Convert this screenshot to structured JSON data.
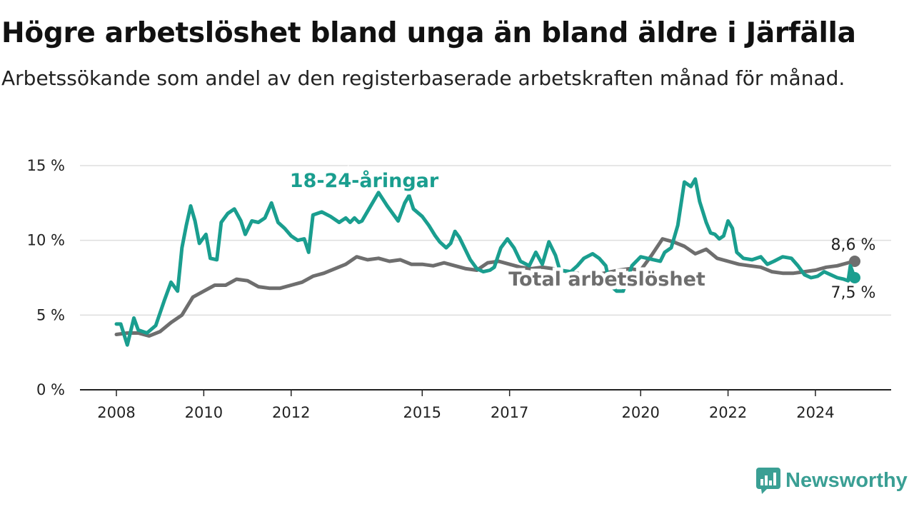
{
  "header": {
    "title": "Högre arbetslöshet bland unga än bland äldre i Järfälla",
    "subtitle": "Arbetssökande som andel av den registerbaserade arbetskraften månad för månad."
  },
  "logo": {
    "text": "Newsworthy",
    "icon": "newsworthy-chart-icon",
    "color": "#3a9f94"
  },
  "chart_data": {
    "type": "line",
    "title": "Högre arbetslöshet bland unga än bland äldre i Järfälla",
    "subtitle": "Arbetssökande som andel av den registerbaserade arbetskraften månad för månad.",
    "xlabel": "",
    "ylabel": "",
    "x_ticks": [
      {
        "value": 2008,
        "label": "2008"
      },
      {
        "value": 2010,
        "label": "2010"
      },
      {
        "value": 2012,
        "label": "2012"
      },
      {
        "value": 2015,
        "label": "2015"
      },
      {
        "value": 2017,
        "label": "2017"
      },
      {
        "value": 2020,
        "label": "2020"
      },
      {
        "value": 2022,
        "label": "2022"
      },
      {
        "value": 2024,
        "label": "2024"
      }
    ],
    "y_ticks": [
      {
        "value": 0,
        "label": "0 %"
      },
      {
        "value": 5,
        "label": "5 %"
      },
      {
        "value": 10,
        "label": "10 %"
      },
      {
        "value": 15,
        "label": "15 %"
      }
    ],
    "xlim": [
      2008,
      2024.9
    ],
    "ylim": [
      0,
      15
    ],
    "grid": true,
    "series": [
      {
        "name": "Total arbetslöshet",
        "color": "#6e6e6e",
        "end_label": "8,6 %",
        "points": [
          [
            2008.0,
            3.7
          ],
          [
            2008.25,
            3.8
          ],
          [
            2008.5,
            3.8
          ],
          [
            2008.75,
            3.6
          ],
          [
            2009.0,
            3.9
          ],
          [
            2009.25,
            4.5
          ],
          [
            2009.5,
            5.0
          ],
          [
            2009.75,
            6.2
          ],
          [
            2010.0,
            6.6
          ],
          [
            2010.25,
            7.0
          ],
          [
            2010.5,
            7.0
          ],
          [
            2010.75,
            7.4
          ],
          [
            2011.0,
            7.3
          ],
          [
            2011.25,
            6.9
          ],
          [
            2011.5,
            6.8
          ],
          [
            2011.75,
            6.8
          ],
          [
            2012.0,
            7.0
          ],
          [
            2012.25,
            7.2
          ],
          [
            2012.5,
            7.6
          ],
          [
            2012.75,
            7.8
          ],
          [
            2013.0,
            8.1
          ],
          [
            2013.25,
            8.4
          ],
          [
            2013.5,
            8.9
          ],
          [
            2013.75,
            8.7
          ],
          [
            2014.0,
            8.8
          ],
          [
            2014.25,
            8.6
          ],
          [
            2014.5,
            8.7
          ],
          [
            2014.75,
            8.4
          ],
          [
            2015.0,
            8.4
          ],
          [
            2015.25,
            8.3
          ],
          [
            2015.5,
            8.5
          ],
          [
            2015.75,
            8.3
          ],
          [
            2016.0,
            8.1
          ],
          [
            2016.25,
            8.0
          ],
          [
            2016.5,
            8.5
          ],
          [
            2016.75,
            8.6
          ],
          [
            2017.0,
            8.4
          ],
          [
            2017.25,
            8.2
          ],
          [
            2017.5,
            8.1
          ],
          [
            2017.75,
            8.2
          ],
          [
            2018.0,
            8.1
          ],
          [
            2018.5,
            7.8
          ],
          [
            2019.0,
            7.7
          ],
          [
            2019.5,
            8.0
          ],
          [
            2019.75,
            8.1
          ],
          [
            2020.0,
            8.0
          ],
          [
            2020.25,
            9.0
          ],
          [
            2020.5,
            10.1
          ],
          [
            2020.75,
            9.9
          ],
          [
            2021.0,
            9.6
          ],
          [
            2021.25,
            9.1
          ],
          [
            2021.5,
            9.4
          ],
          [
            2021.75,
            8.8
          ],
          [
            2022.0,
            8.6
          ],
          [
            2022.25,
            8.4
          ],
          [
            2022.5,
            8.3
          ],
          [
            2022.75,
            8.2
          ],
          [
            2023.0,
            7.9
          ],
          [
            2023.25,
            7.8
          ],
          [
            2023.5,
            7.8
          ],
          [
            2023.75,
            7.9
          ],
          [
            2024.0,
            8.0
          ],
          [
            2024.25,
            8.2
          ],
          [
            2024.5,
            8.3
          ],
          [
            2024.75,
            8.5
          ],
          [
            2024.9,
            8.6
          ]
        ]
      },
      {
        "name": "18-24-åringar",
        "color": "#1a9e8f",
        "end_label": "7,5 %",
        "points": [
          [
            2008.0,
            4.4
          ],
          [
            2008.1,
            4.4
          ],
          [
            2008.25,
            3.0
          ],
          [
            2008.4,
            4.8
          ],
          [
            2008.5,
            4.0
          ],
          [
            2008.7,
            3.8
          ],
          [
            2008.9,
            4.3
          ],
          [
            2009.1,
            6.0
          ],
          [
            2009.25,
            7.2
          ],
          [
            2009.4,
            6.6
          ],
          [
            2009.5,
            9.5
          ],
          [
            2009.6,
            11.0
          ],
          [
            2009.7,
            12.3
          ],
          [
            2009.8,
            11.3
          ],
          [
            2009.9,
            9.8
          ],
          [
            2010.05,
            10.4
          ],
          [
            2010.15,
            8.8
          ],
          [
            2010.3,
            8.7
          ],
          [
            2010.4,
            11.2
          ],
          [
            2010.55,
            11.8
          ],
          [
            2010.7,
            12.1
          ],
          [
            2010.85,
            11.3
          ],
          [
            2010.95,
            10.4
          ],
          [
            2011.1,
            11.3
          ],
          [
            2011.25,
            11.2
          ],
          [
            2011.4,
            11.5
          ],
          [
            2011.55,
            12.5
          ],
          [
            2011.7,
            11.2
          ],
          [
            2011.85,
            10.8
          ],
          [
            2012.0,
            10.3
          ],
          [
            2012.15,
            10.0
          ],
          [
            2012.3,
            10.1
          ],
          [
            2012.4,
            9.2
          ],
          [
            2012.5,
            11.7
          ],
          [
            2012.7,
            11.9
          ],
          [
            2012.9,
            11.6
          ],
          [
            2013.1,
            11.2
          ],
          [
            2013.25,
            11.5
          ],
          [
            2013.35,
            11.2
          ],
          [
            2013.45,
            11.5
          ],
          [
            2013.55,
            11.2
          ],
          [
            2013.62,
            11.3
          ],
          [
            2014.0,
            13.2
          ],
          [
            2014.2,
            12.3
          ],
          [
            2014.45,
            11.3
          ],
          [
            2014.6,
            12.5
          ],
          [
            2014.7,
            13.0
          ],
          [
            2014.8,
            12.1
          ],
          [
            2015.0,
            11.6
          ],
          [
            2015.15,
            11.0
          ],
          [
            2015.3,
            10.3
          ],
          [
            2015.4,
            9.9
          ],
          [
            2015.55,
            9.5
          ],
          [
            2015.65,
            9.8
          ],
          [
            2015.75,
            10.6
          ],
          [
            2015.85,
            10.2
          ],
          [
            2015.95,
            9.6
          ],
          [
            2016.1,
            8.7
          ],
          [
            2016.25,
            8.1
          ],
          [
            2016.4,
            7.9
          ],
          [
            2016.55,
            8.0
          ],
          [
            2016.65,
            8.2
          ],
          [
            2016.8,
            9.5
          ],
          [
            2016.95,
            10.1
          ],
          [
            2017.1,
            9.5
          ],
          [
            2017.25,
            8.6
          ],
          [
            2017.45,
            8.3
          ],
          [
            2017.6,
            9.2
          ],
          [
            2017.75,
            8.4
          ],
          [
            2017.9,
            9.9
          ],
          [
            2018.05,
            9.0
          ],
          [
            2018.15,
            8.0
          ],
          [
            2018.4,
            7.9
          ],
          [
            2018.55,
            8.3
          ],
          [
            2018.7,
            8.8
          ],
          [
            2018.9,
            9.1
          ],
          [
            2019.05,
            8.8
          ],
          [
            2019.2,
            8.3
          ],
          [
            2019.3,
            7.0
          ],
          [
            2019.45,
            6.6
          ],
          [
            2019.6,
            6.6
          ],
          [
            2019.8,
            8.3
          ],
          [
            2020.0,
            8.9
          ],
          [
            2020.15,
            8.8
          ],
          [
            2020.3,
            8.7
          ],
          [
            2020.45,
            8.6
          ],
          [
            2020.55,
            9.2
          ],
          [
            2020.7,
            9.5
          ],
          [
            2020.85,
            11.0
          ],
          [
            2021.0,
            13.9
          ],
          [
            2021.15,
            13.6
          ],
          [
            2021.25,
            14.1
          ],
          [
            2021.35,
            12.6
          ],
          [
            2021.5,
            11.2
          ],
          [
            2021.6,
            10.5
          ],
          [
            2021.7,
            10.4
          ],
          [
            2021.8,
            10.1
          ],
          [
            2021.9,
            10.3
          ],
          [
            2022.0,
            11.3
          ],
          [
            2022.1,
            10.8
          ],
          [
            2022.2,
            9.2
          ],
          [
            2022.35,
            8.8
          ],
          [
            2022.55,
            8.7
          ],
          [
            2022.75,
            8.9
          ],
          [
            2022.9,
            8.4
          ],
          [
            2023.05,
            8.6
          ],
          [
            2023.25,
            8.9
          ],
          [
            2023.45,
            8.8
          ],
          [
            2023.6,
            8.3
          ],
          [
            2023.75,
            7.7
          ],
          [
            2023.9,
            7.5
          ],
          [
            2024.05,
            7.6
          ],
          [
            2024.2,
            7.9
          ],
          [
            2024.35,
            7.7
          ],
          [
            2024.5,
            7.5
          ],
          [
            2024.65,
            7.4
          ],
          [
            2024.75,
            7.3
          ],
          [
            2024.8,
            8.3
          ],
          [
            2024.9,
            7.5
          ]
        ]
      }
    ]
  }
}
